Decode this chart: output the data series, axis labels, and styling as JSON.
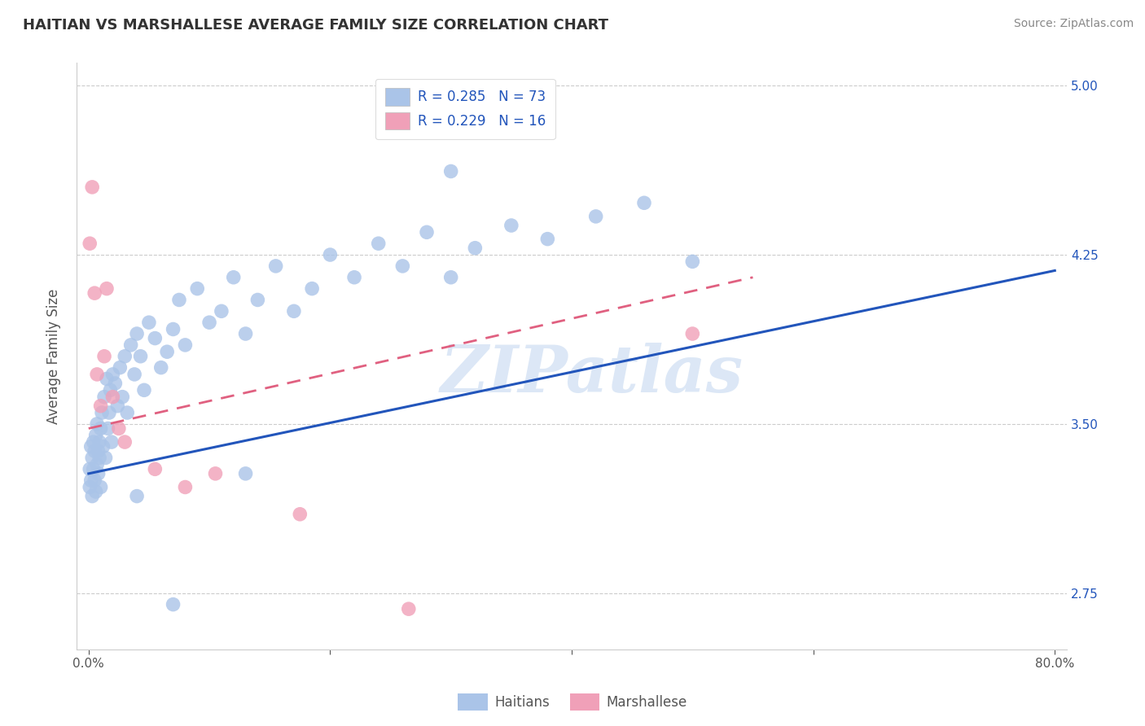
{
  "title": "HAITIAN VS MARSHALLESE AVERAGE FAMILY SIZE CORRELATION CHART",
  "source": "Source: ZipAtlas.com",
  "ylabel": "Average Family Size",
  "xlim": [
    0.0,
    0.8
  ],
  "ylim": [
    2.5,
    5.1
  ],
  "x_ticks": [
    0.0,
    0.2,
    0.4,
    0.6,
    0.8
  ],
  "x_tick_labels": [
    "0.0%",
    "",
    "",
    "",
    "80.0%"
  ],
  "y_ticks": [
    2.75,
    3.5,
    4.25,
    5.0
  ],
  "y_tick_labels": [
    "2.75",
    "3.50",
    "4.25",
    "5.00"
  ],
  "haitians_color": "#aac4e8",
  "marshallese_color": "#f0a0b8",
  "trend_haitian_color": "#2255bb",
  "trend_marshallese_color": "#e06080",
  "legend_R_haitian": "R = 0.285",
  "legend_N_haitian": "N = 73",
  "legend_R_marshallese": "R = 0.229",
  "legend_N_marshallese": "N = 16",
  "watermark": "ZIPatlas",
  "haitian_x": [
    0.001,
    0.001,
    0.002,
    0.002,
    0.003,
    0.003,
    0.004,
    0.004,
    0.005,
    0.005,
    0.006,
    0.006,
    0.007,
    0.007,
    0.008,
    0.008,
    0.009,
    0.009,
    0.01,
    0.01,
    0.011,
    0.012,
    0.013,
    0.014,
    0.015,
    0.016,
    0.017,
    0.018,
    0.019,
    0.02,
    0.022,
    0.024,
    0.026,
    0.028,
    0.03,
    0.032,
    0.035,
    0.038,
    0.04,
    0.043,
    0.046,
    0.05,
    0.055,
    0.06,
    0.065,
    0.07,
    0.075,
    0.08,
    0.09,
    0.1,
    0.11,
    0.12,
    0.13,
    0.14,
    0.155,
    0.17,
    0.185,
    0.2,
    0.22,
    0.24,
    0.26,
    0.28,
    0.3,
    0.32,
    0.35,
    0.38,
    0.42,
    0.46,
    0.3,
    0.5,
    0.13,
    0.04,
    0.07
  ],
  "haitian_y": [
    3.3,
    3.22,
    3.4,
    3.25,
    3.35,
    3.18,
    3.3,
    3.42,
    3.38,
    3.25,
    3.45,
    3.2,
    3.32,
    3.5,
    3.38,
    3.28,
    3.42,
    3.35,
    3.48,
    3.22,
    3.55,
    3.4,
    3.62,
    3.35,
    3.7,
    3.48,
    3.55,
    3.65,
    3.42,
    3.72,
    3.68,
    3.58,
    3.75,
    3.62,
    3.8,
    3.55,
    3.85,
    3.72,
    3.9,
    3.8,
    3.65,
    3.95,
    3.88,
    3.75,
    3.82,
    3.92,
    4.05,
    3.85,
    4.1,
    3.95,
    4.0,
    4.15,
    3.9,
    4.05,
    4.2,
    4.0,
    4.1,
    4.25,
    4.15,
    4.3,
    4.2,
    4.35,
    4.15,
    4.28,
    4.38,
    4.32,
    4.42,
    4.48,
    4.62,
    4.22,
    3.28,
    3.18,
    2.7
  ],
  "marshallese_x": [
    0.001,
    0.003,
    0.005,
    0.007,
    0.01,
    0.013,
    0.015,
    0.02,
    0.025,
    0.03,
    0.055,
    0.08,
    0.105,
    0.175,
    0.265,
    0.5
  ],
  "marshallese_y": [
    4.3,
    4.55,
    4.08,
    3.72,
    3.58,
    3.8,
    4.1,
    3.62,
    3.48,
    3.42,
    3.3,
    3.22,
    3.28,
    3.1,
    2.68,
    3.9
  ],
  "haitian_trend_x0": 0.0,
  "haitian_trend_x1": 0.8,
  "haitian_trend_y0": 3.28,
  "haitian_trend_y1": 4.18,
  "marshallese_trend_x0": 0.0,
  "marshallese_trend_x1": 0.55,
  "marshallese_trend_y0": 3.48,
  "marshallese_trend_y1": 4.15,
  "grid_color": "#cccccc",
  "spine_color": "#cccccc",
  "tick_label_color": "#555555",
  "right_axis_label_color": "#2255bb",
  "title_color": "#333333",
  "source_color": "#888888",
  "watermark_color": "#c5d8f0",
  "ylabel_color": "#555555"
}
